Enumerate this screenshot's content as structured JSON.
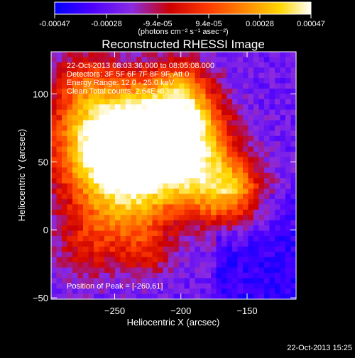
{
  "colorbar": {
    "tick_labels": [
      "-0.00047",
      "-0.00028",
      "-9.4e-05",
      "9.4e-05",
      "0.00028",
      "0.00047"
    ],
    "unit_label": "(photons cm⁻² s⁻¹ asec⁻²)",
    "range": [
      -0.00047,
      0.00047
    ],
    "stops": [
      "#0000ff",
      "#4b00ff",
      "#8a2be2",
      "#cc0000",
      "#ff3b00",
      "#ff8c00",
      "#ffd700",
      "#ffffff"
    ]
  },
  "chart_data": {
    "type": "heatmap",
    "title": "Reconstructed RHESSI Image",
    "xlabel": "Heliocentric X (arcsec)",
    "ylabel": "Heliocentric Y (arcsec)",
    "xlim": [
      -298,
      -113
    ],
    "ylim": [
      -51,
      131
    ],
    "x_ticks": [
      -250,
      -200,
      -150
    ],
    "y_ticks": [
      -50,
      0,
      50,
      100
    ],
    "annotations": [
      "22-Oct-2013 08:03:36.000 to 08:05:08.000",
      "Detectors: 3F 5F 6F 7F 8F 9F, Att 0",
      "Energy Range: 12.0 - 25.0 keV",
      "Clean     Total counts: 2.64E+03"
    ],
    "peak_label": "Position of Peak = [-260,61]",
    "peak": [
      -260,
      61
    ]
  },
  "footer": {
    "timestamp": "22-Oct-2013 15:25"
  }
}
